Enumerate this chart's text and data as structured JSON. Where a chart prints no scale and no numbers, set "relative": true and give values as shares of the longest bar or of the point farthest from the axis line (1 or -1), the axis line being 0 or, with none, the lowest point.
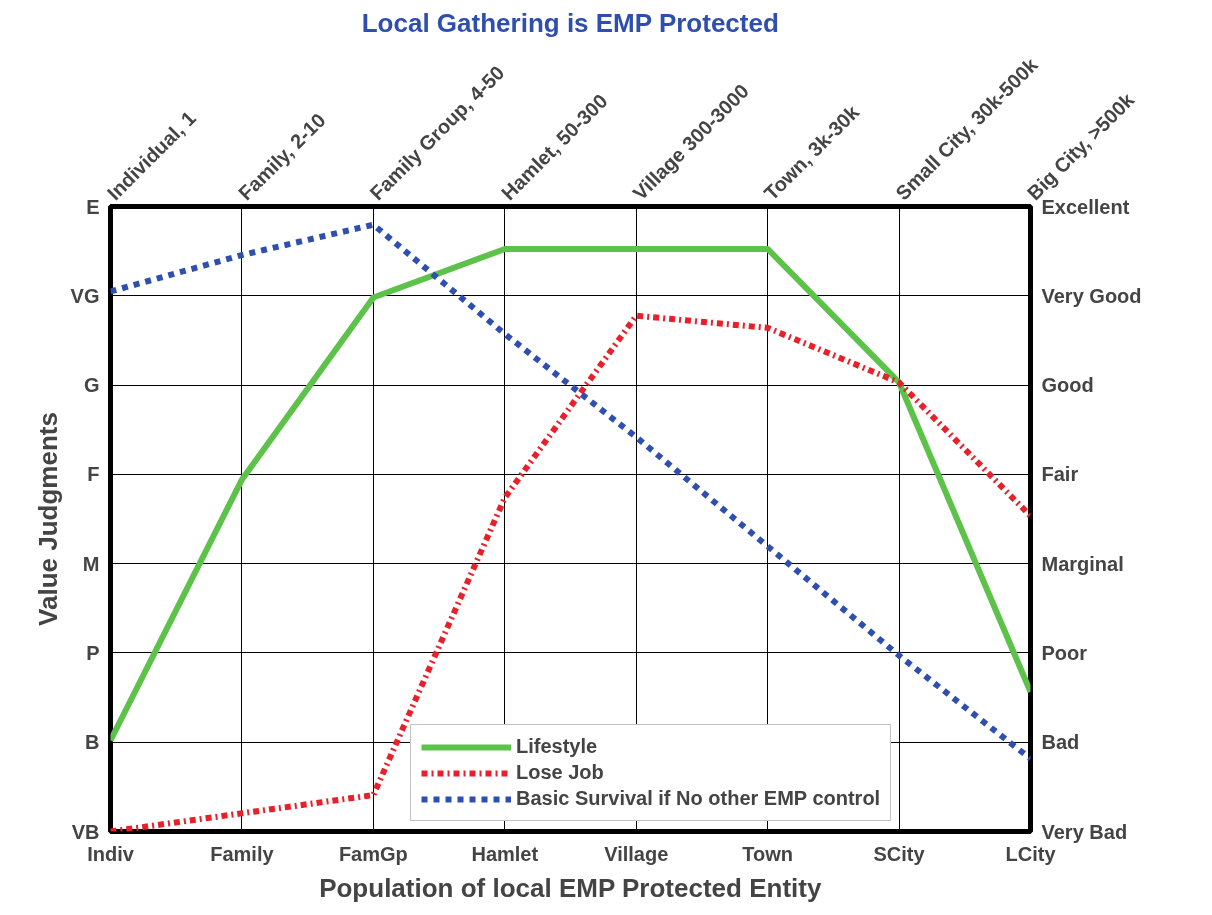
{
  "chart_data": {
    "type": "line",
    "title": "Local Gathering is EMP Protected",
    "xlabel": "Population of local EMP Protected Entity",
    "ylabel": "Value Judgments",
    "relative": true,
    "categories": [
      "Indiv",
      "Family",
      "FamGp",
      "Hamlet",
      "Village",
      "Town",
      "SCity",
      "LCity"
    ],
    "annotations": [
      "Individual, 1",
      "Family, 2-10",
      "Family Group, 4-50",
      "Hamlet, 50-300",
      "Village 300-3000",
      "Town, 3k-30k",
      "Small City, 30k-500k",
      "Big City, >500k",
      "VB",
      "B",
      "P",
      "M",
      "F",
      "G",
      "VG",
      "E",
      "Very Bad",
      "Bad",
      "Poor",
      "Marginal",
      "Fair",
      "Good",
      "Very Good",
      "Excellent"
    ],
    "grid": true,
    "legend": "bottom",
    "series": [
      {
        "name": "Lifestyle",
        "color": "#5dc24a",
        "line_style": "solid",
        "values": [
          0.15,
          0.58,
          0.88,
          0.96,
          0.96,
          0.96,
          0.74,
          0.23
        ]
      },
      {
        "name": "Lose Job",
        "color": "#e8202a",
        "line_style": "dashdot",
        "values": [
          0,
          0.03,
          0.06,
          0.55,
          0.85,
          0.83,
          0.74,
          0.52
        ]
      },
      {
        "name": "Basic Survival if No other EMP control",
        "color": "#2f4fb0",
        "line_style": "dashed",
        "values": [
          0.89,
          0.95,
          1,
          0.82,
          0.65,
          0.47,
          0.29,
          0.12
        ]
      }
    ]
  }
}
